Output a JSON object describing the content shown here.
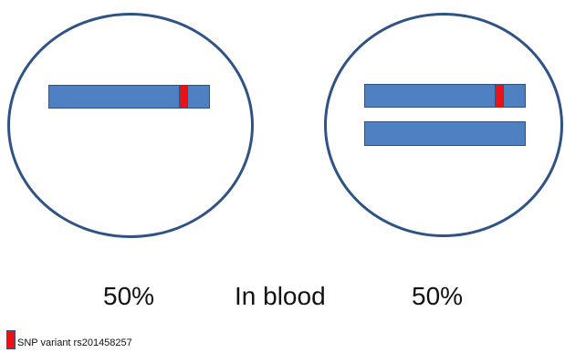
{
  "labels": {
    "left_percent": "50%",
    "center": "In blood",
    "right_percent": "50%"
  },
  "legend": {
    "text": "SNP variant rs201458257"
  },
  "colors": {
    "cell_outline": "#2f5384",
    "chromosome": "#4f81c2",
    "snp_variant": "#ee1111"
  }
}
